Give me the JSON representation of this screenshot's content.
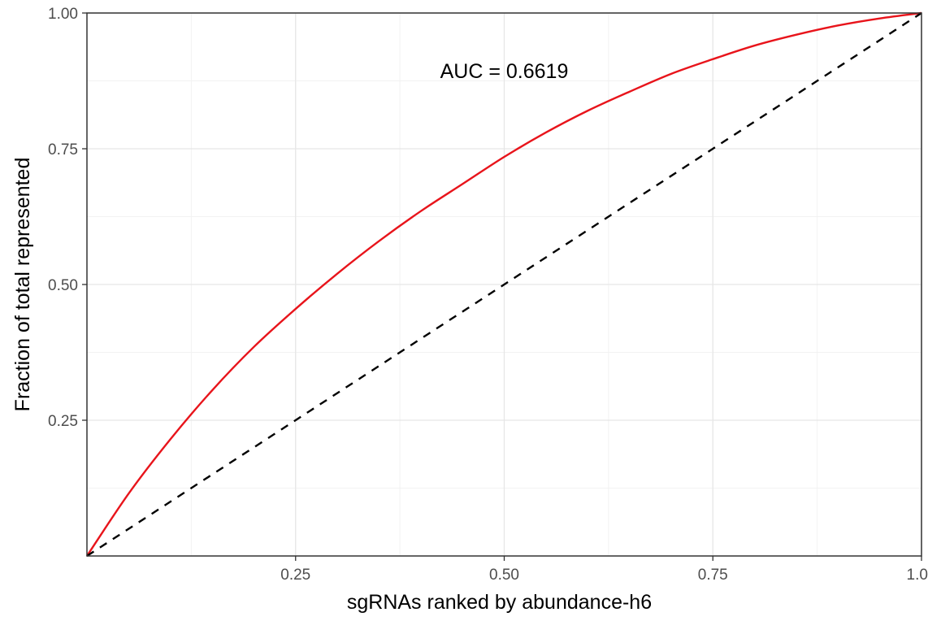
{
  "chart_data": {
    "type": "line",
    "title": "",
    "xlabel": "sgRNAs ranked by abundance-h6",
    "ylabel": "Fraction of total represented",
    "xlim": [
      0,
      1
    ],
    "ylim": [
      0,
      1
    ],
    "x_ticks": [
      0.25,
      0.5,
      0.75,
      1.0
    ],
    "x_tick_labels": [
      "0.25",
      "0.50",
      "0.75",
      "1.00"
    ],
    "y_ticks": [
      0.25,
      0.5,
      0.75,
      1.0
    ],
    "y_tick_labels": [
      "0.25",
      "0.50",
      "0.75",
      "1.00"
    ],
    "grid": true,
    "annotation": "AUC = 0.6619",
    "series": [
      {
        "color": "#e8141b",
        "style": "solid",
        "x": [
          0,
          0.05,
          0.1,
          0.15,
          0.2,
          0.25,
          0.3,
          0.35,
          0.4,
          0.45,
          0.5,
          0.55,
          0.6,
          0.65,
          0.7,
          0.75,
          0.8,
          0.85,
          0.9,
          0.95,
          1.0
        ],
        "y": [
          0,
          0.115,
          0.215,
          0.305,
          0.385,
          0.455,
          0.52,
          0.58,
          0.635,
          0.685,
          0.735,
          0.78,
          0.82,
          0.855,
          0.888,
          0.915,
          0.94,
          0.96,
          0.977,
          0.99,
          1.0
        ]
      },
      {
        "color": "#000000",
        "style": "dashed",
        "x": [
          0,
          1
        ],
        "y": [
          0,
          1
        ]
      }
    ]
  }
}
